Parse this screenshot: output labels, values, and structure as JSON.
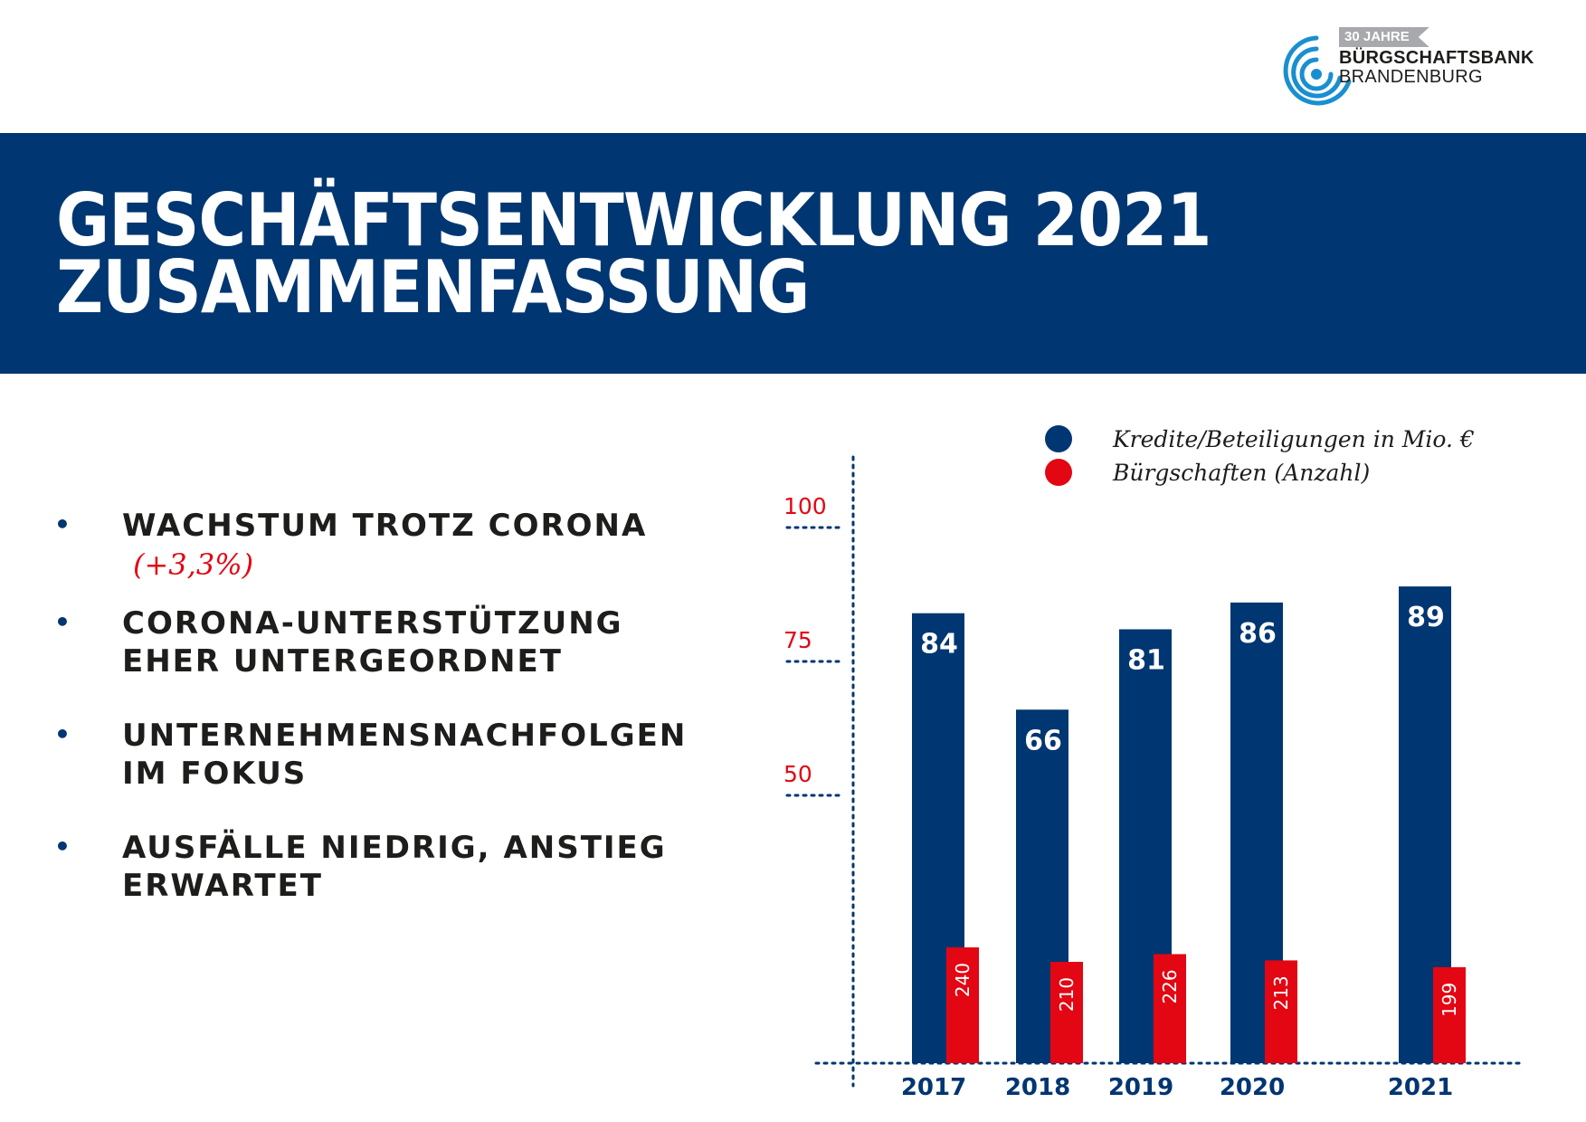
{
  "logo": {
    "ribbon": "30 JAHRE",
    "line1": "BÜRGSCHAFTSBANK",
    "line2": "BRANDENBURG"
  },
  "banner": {
    "title_line1": "GESCHÄFTSENTWICKLUNG 2021",
    "title_line2": "ZUSAMMENFASSUNG"
  },
  "bullets": [
    {
      "text": "WACHSTUM TROTZ CORONA",
      "note": "(+3,3%)"
    },
    {
      "text": "CORONA-UNTERSTÜTZUNG EHER UNTERGEORDNET"
    },
    {
      "text": "UNTERNEHMENSNACHFOLGEN IM FOKUS"
    },
    {
      "text": "AUSFÄLLE NIEDRIG, ANSTIEG ERWARTET"
    }
  ],
  "colors": {
    "navy": "#003671",
    "red": "#e30613"
  },
  "chart_data": {
    "type": "bar",
    "categories": [
      "2017",
      "2018",
      "2019",
      "2020",
      "2021"
    ],
    "series": [
      {
        "name": "Kredite/Beteiligungen in Mio. €",
        "values": [
          84,
          66,
          81,
          86,
          89
        ],
        "color": "#003671"
      },
      {
        "name": "Bürgschaften (Anzahl)",
        "values": [
          240,
          210,
          226,
          213,
          199
        ],
        "color": "#e30613"
      }
    ],
    "yticks": [
      50,
      75,
      100
    ],
    "ylim": [
      0,
      100
    ],
    "legend_position": "top-right",
    "grid": false
  }
}
